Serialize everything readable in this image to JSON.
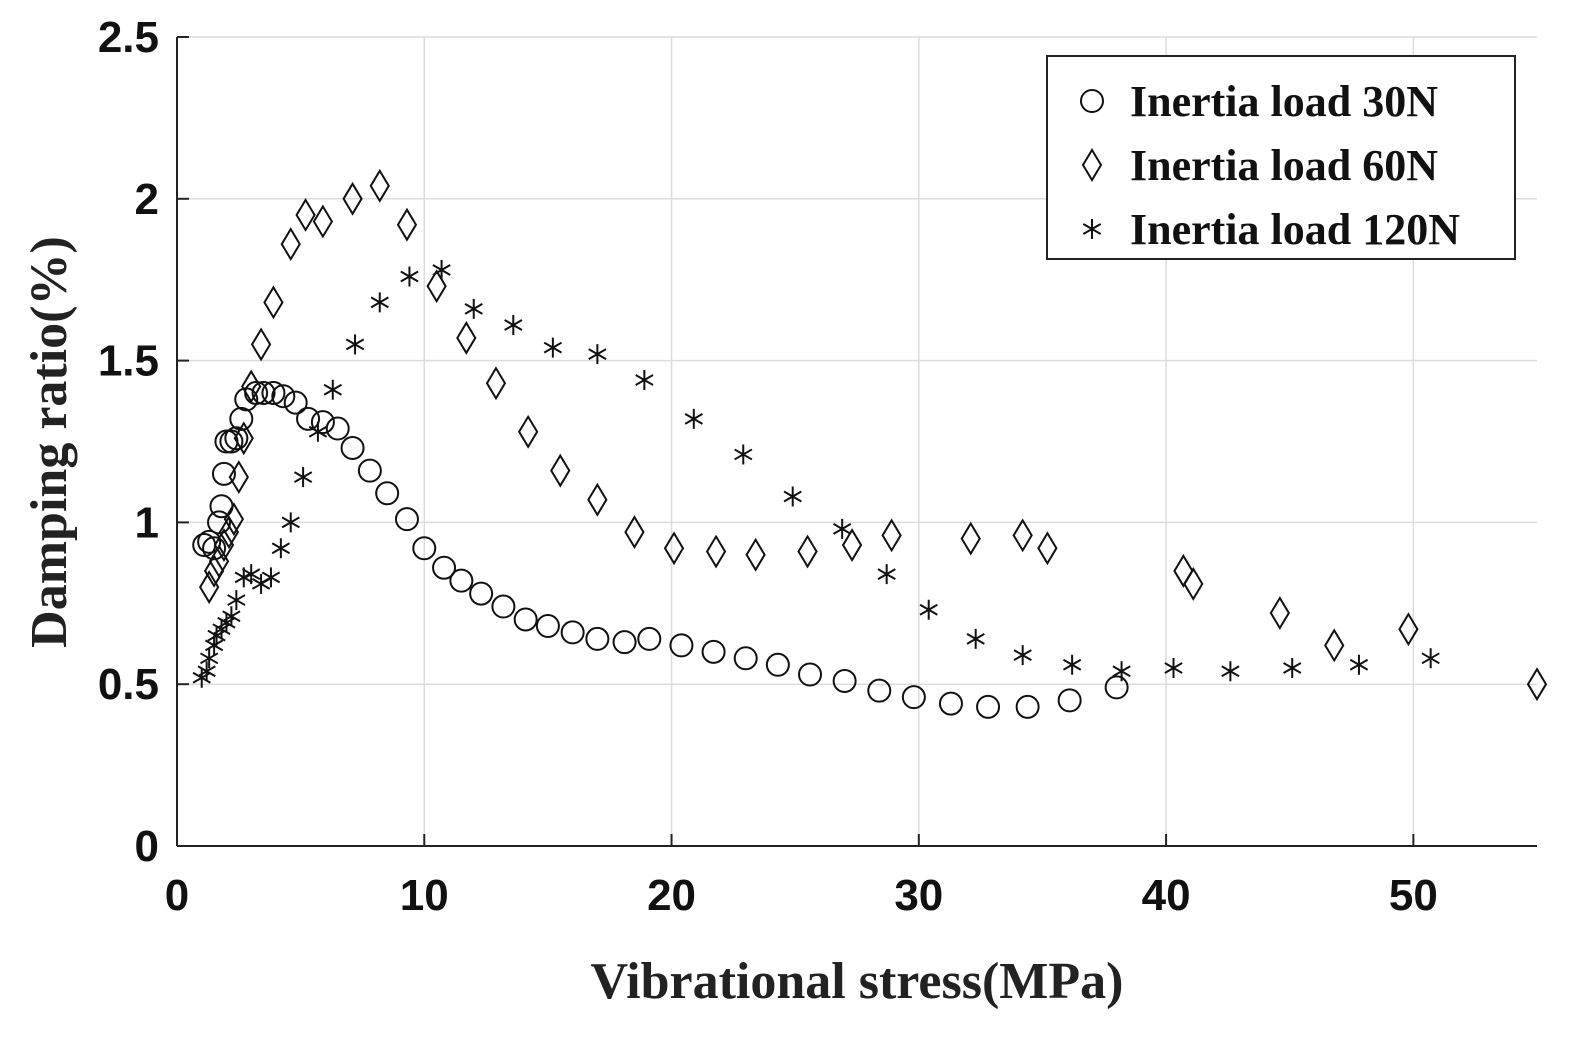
{
  "chart_data": {
    "type": "scatter",
    "title": "",
    "xlabel": "Vibrational stress(MPa)",
    "ylabel": "Damping ratio(%)",
    "xlim": [
      0,
      55
    ],
    "ylim": [
      0,
      2.5
    ],
    "xticks": [
      0,
      10,
      20,
      30,
      40,
      50
    ],
    "xtick_labels": [
      "0",
      "10",
      "20",
      "30",
      "40",
      "50"
    ],
    "yticks": [
      0,
      0.5,
      1,
      1.5,
      2,
      2.5
    ],
    "ytick_labels": [
      "0",
      "0.5",
      "1",
      "1.5",
      "2",
      "2.5"
    ],
    "grid": true,
    "legend_position": "top-right",
    "series": [
      {
        "name": "Inertia load 30N",
        "marker": "circle",
        "x": [
          1.1,
          1.3,
          1.5,
          1.7,
          1.8,
          1.9,
          2.0,
          2.2,
          2.4,
          2.6,
          2.8,
          3.2,
          3.5,
          3.9,
          4.3,
          4.8,
          5.3,
          5.9,
          6.5,
          7.1,
          7.8,
          8.5,
          9.3,
          10.0,
          10.8,
          11.5,
          12.3,
          13.2,
          14.1,
          15.0,
          16.0,
          17.0,
          18.1,
          19.1,
          20.4,
          21.7,
          23.0,
          24.3,
          25.6,
          27.0,
          28.4,
          29.8,
          31.3,
          32.8,
          34.4,
          36.1,
          38.0
        ],
        "y": [
          0.93,
          0.94,
          0.92,
          1.0,
          1.05,
          1.15,
          1.25,
          1.25,
          1.26,
          1.32,
          1.38,
          1.4,
          1.4,
          1.4,
          1.39,
          1.37,
          1.32,
          1.31,
          1.29,
          1.23,
          1.16,
          1.09,
          1.01,
          0.92,
          0.86,
          0.82,
          0.78,
          0.74,
          0.7,
          0.68,
          0.66,
          0.64,
          0.63,
          0.64,
          0.62,
          0.6,
          0.58,
          0.56,
          0.53,
          0.51,
          0.48,
          0.46,
          0.44,
          0.43,
          0.43,
          0.45,
          0.49
        ]
      },
      {
        "name": "Inertia load 60N",
        "marker": "diamond",
        "x": [
          1.3,
          1.5,
          1.7,
          1.9,
          2.1,
          2.3,
          2.5,
          2.7,
          3.0,
          3.4,
          3.9,
          4.6,
          5.2,
          5.9,
          7.1,
          8.2,
          9.3,
          10.5,
          11.7,
          12.9,
          14.2,
          15.5,
          17.0,
          18.5,
          20.1,
          21.8,
          23.4,
          25.5,
          27.3,
          28.9,
          32.1,
          34.2,
          35.2,
          40.7,
          41.1,
          44.6,
          46.8,
          49.8,
          55.0
        ],
        "y": [
          0.8,
          0.85,
          0.88,
          0.93,
          0.97,
          1.01,
          1.14,
          1.26,
          1.42,
          1.55,
          1.68,
          1.86,
          1.95,
          1.93,
          2.0,
          2.04,
          1.92,
          1.73,
          1.57,
          1.43,
          1.28,
          1.16,
          1.07,
          0.97,
          0.92,
          0.91,
          0.9,
          0.91,
          0.93,
          0.96,
          0.95,
          0.96,
          0.92,
          0.85,
          0.81,
          0.72,
          0.62,
          0.67,
          0.5
        ]
      },
      {
        "name": "Inertia load 120N",
        "marker": "asterisk",
        "x": [
          1.0,
          1.2,
          1.3,
          1.5,
          1.6,
          1.8,
          2.0,
          2.2,
          2.4,
          2.7,
          3.0,
          3.4,
          3.8,
          4.2,
          4.6,
          5.1,
          5.7,
          6.3,
          7.2,
          8.2,
          9.4,
          10.7,
          12.0,
          13.6,
          15.2,
          17.0,
          18.9,
          20.9,
          22.9,
          24.9,
          26.9,
          28.7,
          30.4,
          32.3,
          34.2,
          36.2,
          38.2,
          40.3,
          42.6,
          45.1,
          47.8,
          50.7
        ],
        "y": [
          0.52,
          0.54,
          0.58,
          0.62,
          0.65,
          0.67,
          0.69,
          0.71,
          0.76,
          0.83,
          0.84,
          0.81,
          0.83,
          0.92,
          1.0,
          1.14,
          1.28,
          1.41,
          1.55,
          1.68,
          1.76,
          1.78,
          1.66,
          1.61,
          1.54,
          1.52,
          1.44,
          1.32,
          1.21,
          1.08,
          0.98,
          0.84,
          0.73,
          0.64,
          0.59,
          0.56,
          0.54,
          0.55,
          0.54,
          0.55,
          0.56,
          0.58
        ]
      }
    ]
  }
}
